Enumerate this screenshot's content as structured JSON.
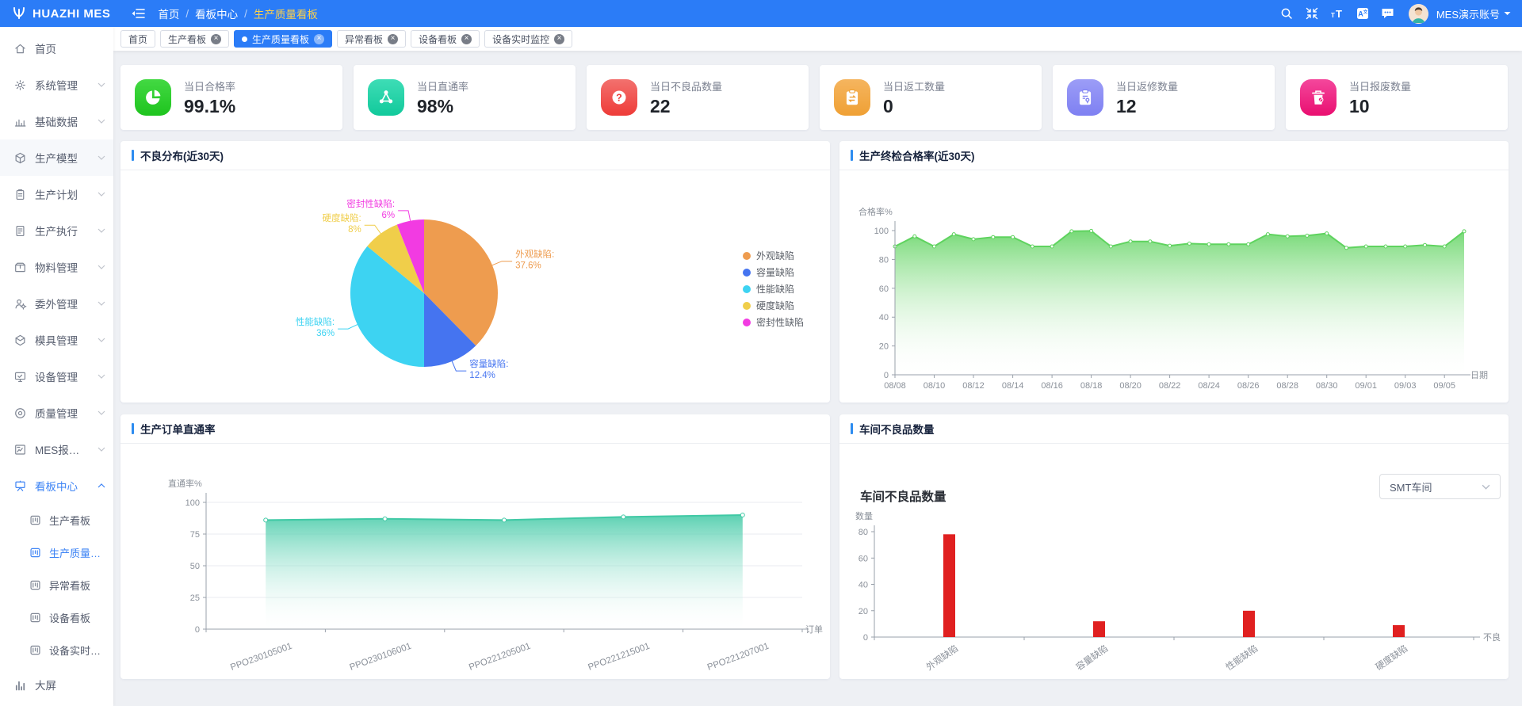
{
  "colors": {
    "primary": "#2b7cf7",
    "sidebar_active": "#3e84f5",
    "card_title_marker": "#2d8cf0",
    "page_background": "#eef0f4",
    "breadcrumb_active": "#fdd14a"
  },
  "topbar": {
    "logo_text": "HUAZHI MES",
    "breadcrumb": [
      "首页",
      "看板中心",
      "生产质量看板"
    ],
    "action_icons": [
      "search-icon",
      "compress-icon",
      "font-size-icon",
      "translate-icon",
      "message-icon"
    ],
    "user_name": "MES演示账号"
  },
  "tabs": [
    {
      "label": "首页",
      "closable": false,
      "active": false
    },
    {
      "label": "生产看板",
      "closable": true,
      "active": false
    },
    {
      "label": "生产质量看板",
      "closable": true,
      "active": true
    },
    {
      "label": "异常看板",
      "closable": true,
      "active": false
    },
    {
      "label": "设备看板",
      "closable": true,
      "active": false
    },
    {
      "label": "设备实时监控",
      "closable": true,
      "active": false
    }
  ],
  "sidebar": {
    "items": [
      {
        "label": "首页",
        "icon": "home",
        "expandable": false
      },
      {
        "label": "系统管理",
        "icon": "gear",
        "expandable": true
      },
      {
        "label": "基础数据",
        "icon": "bar-chart",
        "expandable": true
      },
      {
        "label": "生产模型",
        "icon": "cube",
        "expandable": true,
        "hover": true
      },
      {
        "label": "生产计划",
        "icon": "clipboard",
        "expandable": true
      },
      {
        "label": "生产执行",
        "icon": "document",
        "expandable": true
      },
      {
        "label": "物料管理",
        "icon": "box",
        "expandable": true
      },
      {
        "label": "委外管理",
        "icon": "user-gear",
        "expandable": true
      },
      {
        "label": "模具管理",
        "icon": "package",
        "expandable": true
      },
      {
        "label": "设备管理",
        "icon": "monitor",
        "expandable": true
      },
      {
        "label": "质量管理",
        "icon": "quality",
        "expandable": true
      },
      {
        "label": "MES报表中心",
        "icon": "report",
        "expandable": true
      },
      {
        "label": "看板中心",
        "icon": "board",
        "expandable": true,
        "expanded": true,
        "active": true,
        "children": [
          {
            "label": "生产看板",
            "icon": "kanban",
            "active": false
          },
          {
            "label": "生产质量看板",
            "icon": "kanban",
            "active": true
          },
          {
            "label": "异常看板",
            "icon": "kanban",
            "active": false
          },
          {
            "label": "设备看板",
            "icon": "kanban",
            "active": false
          },
          {
            "label": "设备实时监控",
            "icon": "kanban",
            "active": false
          }
        ]
      },
      {
        "label": "大屏",
        "icon": "chart-bars",
        "expandable": false
      }
    ]
  },
  "kpi_cards": [
    {
      "label": "当日合格率",
      "value": "99.1%",
      "icon": "pie-chart",
      "color_from": "#43d943",
      "color_to": "#1ec41e"
    },
    {
      "label": "当日直通率",
      "value": "98%",
      "icon": "share",
      "color_from": "#3eddb6",
      "color_to": "#11c99b"
    },
    {
      "label": "当日不良品数量",
      "value": "22",
      "icon": "question",
      "color_from": "#f3716e",
      "color_to": "#ee3b38"
    },
    {
      "label": "当日返工数量",
      "value": "0",
      "icon": "clipboard-arrows",
      "color_from": "#f5b55f",
      "color_to": "#efa034"
    },
    {
      "label": "当日返修数量",
      "value": "12",
      "icon": "clipboard-wrench",
      "color_from": "#9c9df7",
      "color_to": "#7e80f2"
    },
    {
      "label": "当日报废数量",
      "value": "10",
      "icon": "trash",
      "color_from": "#f4479c",
      "color_to": "#e90f70"
    }
  ],
  "chart_data": [
    {
      "id": "defect_distribution",
      "type": "pie",
      "title": "不良分布(近30天)",
      "legend_position": "right",
      "slices": [
        {
          "name": "外观缺陷",
          "value": 37.6,
          "pct": "37.6%",
          "color": "#ee9c4f"
        },
        {
          "name": "容量缺陷",
          "value": 12.4,
          "pct": "12.4%",
          "color": "#4574f0"
        },
        {
          "name": "性能缺陷",
          "value": 36,
          "pct": "36%",
          "color": "#3dd3f2"
        },
        {
          "name": "硬度缺陷",
          "value": 8,
          "pct": "8%",
          "color": "#f0ce4a"
        },
        {
          "name": "密封性缺陷",
          "value": 6,
          "pct": "6%",
          "color": "#f23be2"
        }
      ]
    },
    {
      "id": "final_inspection_pass_rate",
      "type": "area",
      "title": "生产终检合格率(近30天)",
      "ylabel": "合格率%",
      "xlabel": "日期",
      "ylim": [
        0,
        100
      ],
      "yticks": [
        0,
        20,
        40,
        60,
        80,
        100
      ],
      "color": "#5fd35f",
      "grid": false,
      "x": [
        "08/08",
        "08/09",
        "08/10",
        "08/11",
        "08/12",
        "08/13",
        "08/14",
        "08/15",
        "08/16",
        "08/17",
        "08/18",
        "08/19",
        "08/20",
        "08/21",
        "08/22",
        "08/23",
        "08/24",
        "08/25",
        "08/26",
        "08/27",
        "08/28",
        "08/29",
        "08/30",
        "08/31",
        "09/01",
        "09/02",
        "09/03",
        "09/04",
        "09/05",
        "09/06"
      ],
      "values": [
        89,
        96,
        89,
        97.5,
        94,
        95.5,
        95.5,
        89,
        89,
        99.5,
        99.8,
        89,
        92.5,
        92.5,
        89.5,
        91,
        90.5,
        90.5,
        90.5,
        97.5,
        96,
        96.5,
        98,
        88,
        89,
        89,
        89,
        90,
        89,
        99.5
      ]
    },
    {
      "id": "order_first_pass_yield",
      "type": "area",
      "title": "生产订单直通率",
      "ylabel": "直通率%",
      "xlabel": "订单",
      "ylim": [
        0,
        100
      ],
      "yticks": [
        0,
        25,
        50,
        75,
        100
      ],
      "color": "#40c9a5",
      "grid": true,
      "x": [
        "PPO230105001",
        "PPO230106001",
        "PPO221205001",
        "PPO221215001",
        "PPO221207001"
      ],
      "values": [
        86,
        87,
        86,
        88.5,
        90
      ]
    },
    {
      "id": "workshop_defect_count",
      "type": "bar",
      "title": "车间不良品数量",
      "inner_title": "车间不良品数量",
      "dropdown_value": "SMT车间",
      "ylabel": "数量",
      "xlabel": "不良",
      "ylim": [
        0,
        80
      ],
      "yticks": [
        0,
        20,
        40,
        60,
        80
      ],
      "color": "#e02020",
      "categories": [
        "外观缺陷",
        "容量缺陷",
        "性能缺陷",
        "硬度缺陷"
      ],
      "values": [
        78,
        12,
        20,
        9
      ]
    }
  ]
}
